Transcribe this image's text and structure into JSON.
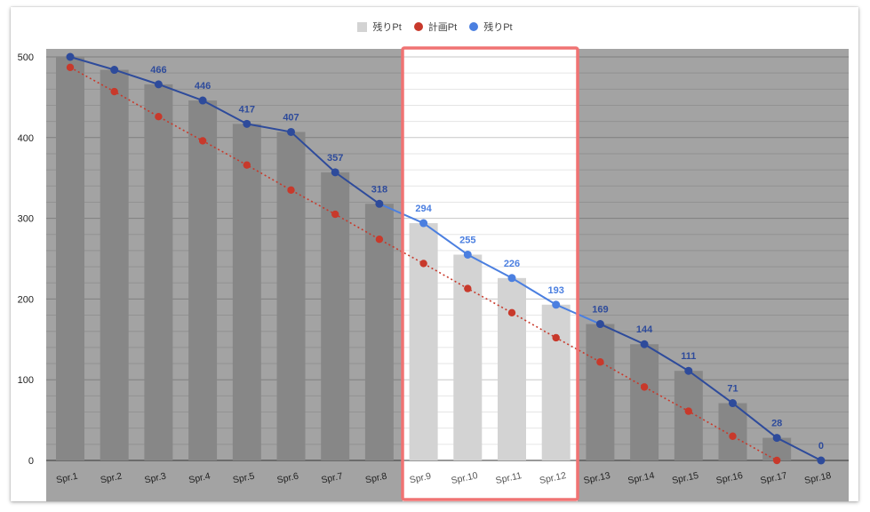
{
  "colors": {
    "bar_shaded": "#878787",
    "bar_highlight": "#d3d3d3",
    "background_shaded": "#a3a3a3",
    "background_highlight": "#ffffff",
    "plan_line": "#c8392b",
    "remaining_line_dark": "#2e4b9b",
    "remaining_line_light": "#4b7fe0",
    "highlight_border": "#f07373"
  },
  "chart_data": {
    "type": "bar",
    "categories": [
      "Spr.1",
      "Spr.2",
      "Spr.3",
      "Spr.4",
      "Spr.5",
      "Spr.6",
      "Spr.7",
      "Spr.8",
      "Spr.9",
      "Spr.10",
      "Spr.11",
      "Spr.12",
      "Spr.13",
      "Spr.14",
      "Spr.15",
      "Spr.16",
      "Spr.17",
      "Spr.18"
    ],
    "series": [
      {
        "name": "残りPt",
        "type": "bar",
        "values": [
          500,
          484,
          466,
          446,
          417,
          407,
          357,
          318,
          294,
          255,
          226,
          193,
          169,
          144,
          111,
          71,
          28,
          0
        ]
      },
      {
        "name": "計画Pt",
        "type": "line",
        "style": "dotted",
        "values": [
          487,
          457,
          426,
          396,
          366,
          335,
          305,
          274,
          244,
          213,
          183,
          152,
          122,
          91,
          61,
          30,
          0,
          null
        ]
      },
      {
        "name": "残りPt",
        "type": "line",
        "values": [
          500,
          484,
          466,
          446,
          417,
          407,
          357,
          318,
          294,
          255,
          226,
          193,
          169,
          144,
          111,
          71,
          28,
          0
        ]
      }
    ],
    "data_labels": [
      "",
      "",
      "466",
      "446",
      "417",
      "407",
      "357",
      "318",
      "294",
      "255",
      "226",
      "193",
      "169",
      "144",
      "111",
      "71",
      "28",
      "0"
    ],
    "highlighted_categories": [
      "Spr.9",
      "Spr.10",
      "Spr.11",
      "Spr.12"
    ],
    "yticks": [
      0,
      100,
      200,
      300,
      400,
      500
    ],
    "ylim": [
      0,
      510
    ],
    "legend_position": "top-center",
    "grid": true
  }
}
